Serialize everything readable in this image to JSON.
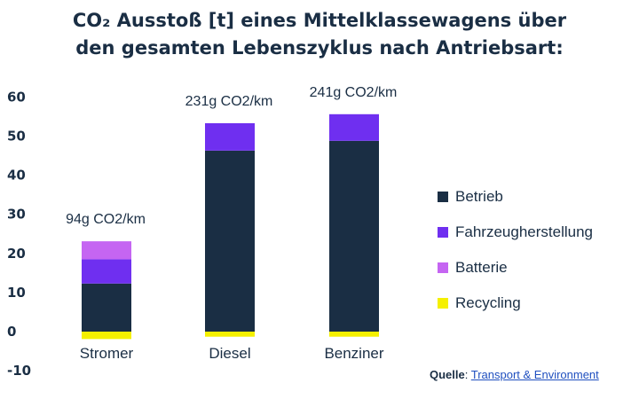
{
  "chart_data": {
    "type": "bar",
    "stacked": true,
    "title_line1": "CO₂ Ausstoß [t] eines Mittelklassewagens über",
    "title_line2": "den gesamten Lebenszyklus nach Antriebsart:",
    "categories": [
      "Stromer",
      "Diesel",
      "Benziner"
    ],
    "series": [
      {
        "name": "Betrieb",
        "values": [
          12.3,
          46.3,
          48.8
        ]
      },
      {
        "name": "Fahrzeugherstellung",
        "values": [
          6.2,
          7.0,
          6.8
        ]
      },
      {
        "name": "Batterie",
        "values": [
          4.6,
          0,
          0
        ]
      },
      {
        "name": "Recycling",
        "values": [
          -1.9,
          -1.3,
          -1.3
        ]
      }
    ],
    "annotations": [
      "94g CO2/km",
      "231g CO2/km",
      "241g CO2/km"
    ],
    "yticks": [
      "60",
      "50",
      "40",
      "30",
      "20",
      "10",
      "0",
      "-10"
    ],
    "ytick_values": [
      60,
      50,
      40,
      30,
      20,
      10,
      0,
      -10
    ],
    "ylim": [
      -10,
      60
    ],
    "grid": false,
    "legend_position": "right",
    "colors": {
      "Betrieb": "#1a2e44",
      "Fahrzeugherstellung": "#6f2ff0",
      "Batterie": "#c565f2",
      "Recycling": "#f5f000"
    }
  },
  "legend": [
    "Betrieb",
    "Fahrzeugherstellung",
    "Batterie",
    "Recycling"
  ],
  "source": {
    "label": "Quelle",
    "link_text": "Transport & Environment"
  }
}
